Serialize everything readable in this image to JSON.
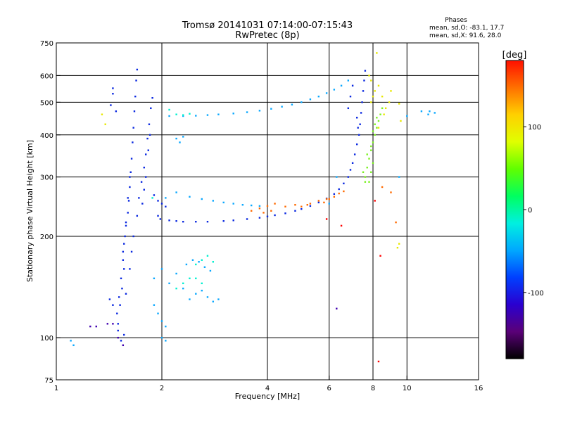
{
  "header": {
    "title_line1": "Tromsø 20141031 07:14:00-07:15:43",
    "title_line2": "RwPretec (8p)",
    "stats_title": "Phases",
    "stats_o": "mean, sd,O: -83.1, 17.7",
    "stats_x": "mean, sd,X:  91.6, 28.0"
  },
  "chart_data": {
    "type": "scatter",
    "xlabel": "Frequency [MHz]",
    "ylabel": "Stationary phase Virtual Height [km]",
    "xscale": "log",
    "yscale": "log",
    "xlim": [
      1,
      16
    ],
    "ylim": [
      75,
      750
    ],
    "x_ticks": [
      1,
      2,
      4,
      6,
      8,
      10,
      16
    ],
    "x_tick_labels": [
      "1",
      "2",
      "4",
      "6",
      "8",
      "10",
      "16"
    ],
    "y_ticks": [
      75,
      100,
      200,
      300,
      400,
      500,
      600,
      750
    ],
    "y_tick_labels": [
      "75",
      "100",
      "200",
      "300",
      "400",
      "500",
      "600",
      "750"
    ],
    "grid_x": [
      2,
      4,
      6,
      8,
      10
    ],
    "grid_y": [
      100,
      200,
      300,
      400,
      500,
      600
    ],
    "grid": true,
    "colorbar": {
      "label": "[deg]",
      "range": [
        -180,
        180
      ],
      "tick_values": [
        100,
        0,
        -100
      ],
      "tick_labels": [
        "100",
        "0",
        "-100"
      ],
      "colormap": [
        "#000000",
        "#5a0078",
        "#2a00d0",
        "#0040ff",
        "#00a8ff",
        "#00f0e0",
        "#00ff60",
        "#60ff00",
        "#e0ff00",
        "#ffd000",
        "#ff7000",
        "#ff1000"
      ]
    },
    "series": [
      {
        "color": "#0a28e0",
        "points": [
          [
            1.5,
            110
          ],
          [
            1.52,
            125
          ],
          [
            1.54,
            140
          ],
          [
            1.56,
            160
          ],
          [
            1.55,
            180
          ],
          [
            1.57,
            200
          ],
          [
            1.58,
            215
          ],
          [
            1.6,
            235
          ],
          [
            1.61,
            255
          ],
          [
            1.62,
            280
          ],
          [
            1.63,
            310
          ],
          [
            1.64,
            340
          ],
          [
            1.65,
            380
          ],
          [
            1.66,
            420
          ],
          [
            1.67,
            470
          ],
          [
            1.68,
            520
          ],
          [
            1.69,
            580
          ],
          [
            1.7,
            625
          ],
          [
            1.62,
            300
          ],
          [
            1.6,
            260
          ],
          [
            1.58,
            220
          ],
          [
            1.56,
            190
          ],
          [
            1.55,
            170
          ],
          [
            1.53,
            150
          ],
          [
            1.51,
            132
          ],
          [
            1.49,
            118
          ],
          [
            1.5,
            105
          ],
          [
            1.53,
            98
          ],
          [
            1.56,
            102
          ],
          [
            1.45,
            125
          ],
          [
            1.42,
            130
          ],
          [
            1.58,
            135
          ],
          [
            1.62,
            160
          ],
          [
            1.64,
            180
          ],
          [
            1.66,
            200
          ],
          [
            1.7,
            230
          ],
          [
            1.72,
            260
          ],
          [
            1.75,
            290
          ],
          [
            1.78,
            320
          ],
          [
            1.8,
            350
          ],
          [
            1.82,
            390
          ],
          [
            1.84,
            430
          ],
          [
            1.86,
            480
          ],
          [
            1.88,
            515
          ],
          [
            1.85,
            400
          ],
          [
            1.83,
            360
          ],
          [
            1.8,
            300
          ],
          [
            1.78,
            275
          ],
          [
            1.76,
            250
          ],
          [
            1.9,
            265
          ],
          [
            1.95,
            255
          ],
          [
            2.0,
            250
          ],
          [
            2.05,
            245
          ],
          [
            1.95,
            230
          ],
          [
            1.98,
            225
          ],
          [
            2.1,
            223
          ],
          [
            2.2,
            222
          ],
          [
            2.3,
            221
          ],
          [
            2.5,
            221
          ],
          [
            2.7,
            221
          ],
          [
            3.0,
            222
          ],
          [
            3.2,
            223
          ],
          [
            3.5,
            225
          ],
          [
            3.8,
            227
          ],
          [
            4.0,
            229
          ],
          [
            4.2,
            231
          ],
          [
            4.5,
            234
          ],
          [
            4.8,
            238
          ],
          [
            5.0,
            241
          ],
          [
            5.3,
            246
          ],
          [
            5.6,
            252
          ],
          [
            5.9,
            259
          ],
          [
            6.2,
            267
          ],
          [
            6.4,
            276
          ],
          [
            6.6,
            287
          ],
          [
            6.8,
            300
          ],
          [
            6.9,
            315
          ],
          [
            7.0,
            330
          ],
          [
            7.1,
            350
          ],
          [
            7.2,
            375
          ],
          [
            7.3,
            400
          ],
          [
            7.35,
            430
          ],
          [
            7.4,
            465
          ],
          [
            7.45,
            500
          ],
          [
            7.5,
            540
          ],
          [
            7.55,
            580
          ],
          [
            7.6,
            620
          ],
          [
            7.0,
            560
          ],
          [
            6.9,
            520
          ],
          [
            6.8,
            480
          ],
          [
            7.2,
            450
          ],
          [
            7.25,
            420
          ],
          [
            1.45,
            530
          ],
          [
            1.45,
            550
          ],
          [
            1.43,
            490
          ],
          [
            1.48,
            470
          ]
        ]
      },
      {
        "color": "#0aa8ff",
        "points": [
          [
            2.05,
            260
          ],
          [
            2.2,
            270
          ],
          [
            2.4,
            262
          ],
          [
            2.6,
            258
          ],
          [
            2.8,
            255
          ],
          [
            3.0,
            252
          ],
          [
            3.2,
            250
          ],
          [
            3.4,
            248
          ],
          [
            3.6,
            247
          ],
          [
            3.8,
            246
          ],
          [
            2.1,
            455
          ],
          [
            2.3,
            455
          ],
          [
            2.5,
            456
          ],
          [
            2.7,
            458
          ],
          [
            2.9,
            460
          ],
          [
            3.2,
            463
          ],
          [
            3.5,
            467
          ],
          [
            3.8,
            472
          ],
          [
            4.1,
            478
          ],
          [
            4.4,
            485
          ],
          [
            4.7,
            492
          ],
          [
            5.0,
            500
          ],
          [
            5.3,
            510
          ],
          [
            5.6,
            520
          ],
          [
            5.9,
            532
          ],
          [
            6.2,
            545
          ],
          [
            6.5,
            560
          ],
          [
            6.8,
            580
          ],
          [
            2.2,
            390
          ],
          [
            2.25,
            380
          ],
          [
            2.3,
            395
          ],
          [
            1.9,
            150
          ],
          [
            2.0,
            160
          ],
          [
            2.1,
            145
          ],
          [
            2.2,
            155
          ],
          [
            2.3,
            140
          ],
          [
            2.4,
            130
          ],
          [
            2.5,
            135
          ],
          [
            2.6,
            138
          ],
          [
            2.7,
            132
          ],
          [
            2.8,
            128
          ],
          [
            2.9,
            130
          ],
          [
            2.35,
            165
          ],
          [
            2.45,
            170
          ],
          [
            2.55,
            168
          ],
          [
            2.65,
            162
          ],
          [
            2.75,
            158
          ],
          [
            1.9,
            125
          ],
          [
            1.95,
            118
          ],
          [
            2.0,
            112
          ],
          [
            2.05,
            108
          ],
          [
            1.1,
            98
          ],
          [
            1.12,
            95
          ],
          [
            2.0,
            100
          ],
          [
            2.05,
            98
          ],
          [
            11.5,
            460
          ],
          [
            12.0,
            465
          ],
          [
            11.0,
            470
          ],
          [
            10.0,
            455
          ],
          [
            11.6,
            470
          ],
          [
            9.5,
            300
          ],
          [
            6.0,
            250
          ],
          [
            6.3,
            300
          ]
        ]
      },
      {
        "color": "#7af020",
        "points": [
          [
            7.6,
            300
          ],
          [
            7.7,
            320
          ],
          [
            7.8,
            340
          ],
          [
            7.9,
            360
          ],
          [
            8.0,
            380
          ],
          [
            8.1,
            400
          ],
          [
            8.2,
            420
          ],
          [
            8.3,
            440
          ],
          [
            8.4,
            460
          ],
          [
            8.5,
            480
          ],
          [
            7.8,
            290
          ],
          [
            7.9,
            310
          ],
          [
            8.0,
            330
          ],
          [
            7.5,
            310
          ],
          [
            7.6,
            290
          ],
          [
            7.7,
            350
          ],
          [
            7.9,
            370
          ],
          [
            8.0,
            410
          ],
          [
            8.1,
            430
          ],
          [
            8.2,
            450
          ]
        ]
      },
      {
        "color": "#e8e800",
        "points": [
          [
            7.9,
            500
          ],
          [
            8.0,
            520
          ],
          [
            8.1,
            540
          ],
          [
            8.3,
            560
          ],
          [
            8.5,
            520
          ],
          [
            8.7,
            480
          ],
          [
            8.9,
            500
          ],
          [
            9.0,
            540
          ],
          [
            7.8,
            600
          ],
          [
            7.9,
            580
          ],
          [
            8.2,
            700
          ],
          [
            8.3,
            420
          ],
          [
            8.6,
            460
          ],
          [
            9.5,
            495
          ],
          [
            9.6,
            440
          ],
          [
            9.5,
            190
          ],
          [
            9.4,
            185
          ],
          [
            1.35,
            460
          ],
          [
            1.38,
            430
          ]
        ]
      },
      {
        "color": "#ff6a00",
        "points": [
          [
            3.6,
            238
          ],
          [
            3.8,
            242
          ],
          [
            4.0,
            246
          ],
          [
            4.2,
            250
          ],
          [
            4.5,
            245
          ],
          [
            4.8,
            248
          ],
          [
            5.0,
            245
          ],
          [
            5.3,
            250
          ],
          [
            5.6,
            255
          ],
          [
            5.9,
            258
          ],
          [
            6.2,
            262
          ],
          [
            6.4,
            268
          ],
          [
            6.6,
            272
          ],
          [
            3.9,
            235
          ],
          [
            4.1,
            238
          ],
          [
            5.2,
            248
          ],
          [
            5.8,
            252
          ],
          [
            6.0,
            258
          ],
          [
            8.5,
            280
          ],
          [
            9.0,
            270
          ],
          [
            9.3,
            220
          ]
        ]
      },
      {
        "color": "#ff0000",
        "points": [
          [
            8.3,
            85
          ],
          [
            8.4,
            175
          ],
          [
            5.9,
            225
          ],
          [
            6.5,
            215
          ],
          [
            8.1,
            255
          ]
        ]
      },
      {
        "color": "#00f0d0",
        "points": [
          [
            2.5,
            165
          ],
          [
            2.6,
            170
          ],
          [
            2.7,
            175
          ],
          [
            2.8,
            168
          ],
          [
            2.2,
            140
          ],
          [
            2.3,
            145
          ],
          [
            2.4,
            150
          ],
          [
            2.5,
            150
          ],
          [
            2.6,
            145
          ],
          [
            1.88,
            260
          ],
          [
            2.1,
            475
          ],
          [
            2.2,
            460
          ],
          [
            2.3,
            458
          ],
          [
            2.4,
            462
          ]
        ]
      },
      {
        "color": "#4000b0",
        "points": [
          [
            1.45,
            110
          ],
          [
            1.4,
            110
          ],
          [
            1.5,
            100
          ],
          [
            6.3,
            122
          ],
          [
            1.55,
            95
          ],
          [
            1.25,
            108
          ],
          [
            1.3,
            108
          ]
        ]
      }
    ]
  }
}
